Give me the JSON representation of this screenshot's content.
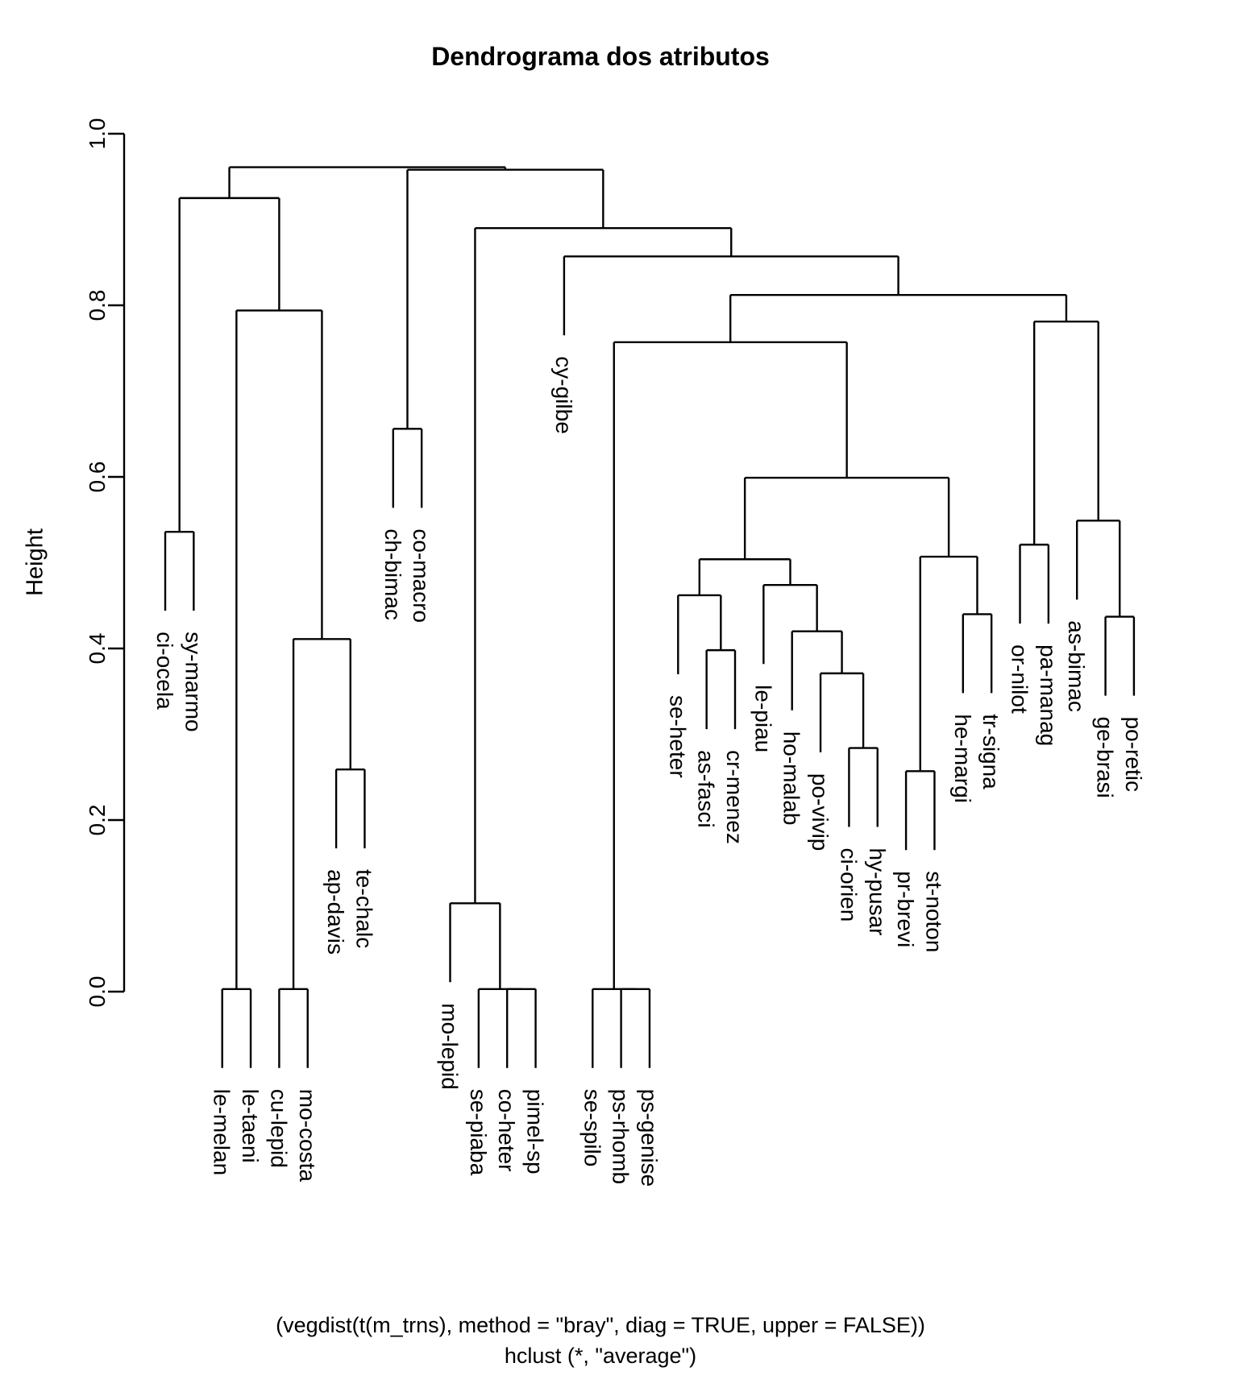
{
  "chart_data": {
    "type": "dendrogram",
    "title": "Dendrograma dos atributos",
    "ylabel": "Height",
    "ylim": [
      0.0,
      1.0
    ],
    "ytick_labels": [
      "0.0",
      "0.2",
      "0.4",
      "0.6",
      "0.8",
      "1.0"
    ],
    "ytick_values": [
      0.0,
      0.2,
      0.4,
      0.6,
      0.8,
      1.0
    ],
    "caption_line1": "(vegdist(t(m_trns), method = \"bray\", diag = TRUE, upper = FALSE))",
    "caption_line2": "hclust (*, \"average\")",
    "legend": "none",
    "grid": false,
    "leaf_hang_fraction": 0.092,
    "leaves": [
      "ci-ocela",
      "sy-marmo",
      "le-melan",
      "le-taeni",
      "cu-lepid",
      "mo-costa",
      "ap-davis",
      "te-chalc",
      "ch-bimac",
      "co-macro",
      "mo-lepid",
      "se-piaba",
      "co-heter",
      "pimel-sp",
      "cy-gilbe",
      "se-spilo",
      "ps-rhomb",
      "ps-genise",
      "se-heter",
      "as-fasci",
      "cr-menez",
      "le-piau",
      "ho-malab",
      "po-vivip",
      "ci-orien",
      "hy-pusar",
      "pr-brevi",
      "st-noton",
      "he-margi",
      "tr-signa",
      "or-nilot",
      "pa-manag",
      "as-bimac",
      "ge-brasi",
      "po-retic"
    ],
    "merges": [
      {
        "left": "L0",
        "right": "L1",
        "height": 0.536
      },
      {
        "left": "L2",
        "right": "L3",
        "height": 0.003
      },
      {
        "left": "L4",
        "right": "L5",
        "height": 0.003
      },
      {
        "left": "L6",
        "right": "L7",
        "height": 0.259
      },
      {
        "left": "M2",
        "right": "M3",
        "height": 0.411
      },
      {
        "left": "M1",
        "right": "M4",
        "height": 0.794
      },
      {
        "left": "M0",
        "right": "M5",
        "height": 0.925
      },
      {
        "left": "L8",
        "right": "L9",
        "height": 0.656
      },
      {
        "left": "L12",
        "right": "L13",
        "height": 0.003
      },
      {
        "left": "L11",
        "right": "M8",
        "height": 0.003
      },
      {
        "left": "L10",
        "right": "M9",
        "height": 0.103
      },
      {
        "left": "L16",
        "right": "L17",
        "height": 0.003
      },
      {
        "left": "L15",
        "right": "M11",
        "height": 0.003
      },
      {
        "left": "L19",
        "right": "L20",
        "height": 0.398
      },
      {
        "left": "L18",
        "right": "M13",
        "height": 0.462
      },
      {
        "left": "L24",
        "right": "L25",
        "height": 0.284
      },
      {
        "left": "L23",
        "right": "M15",
        "height": 0.371
      },
      {
        "left": "L22",
        "right": "M16",
        "height": 0.42
      },
      {
        "left": "L21",
        "right": "M17",
        "height": 0.474
      },
      {
        "left": "M14",
        "right": "M18",
        "height": 0.504
      },
      {
        "left": "L26",
        "right": "L27",
        "height": 0.257
      },
      {
        "left": "L28",
        "right": "L29",
        "height": 0.44
      },
      {
        "left": "M20",
        "right": "M21",
        "height": 0.507
      },
      {
        "left": "M19",
        "right": "M22",
        "height": 0.599
      },
      {
        "left": "M12",
        "right": "M23",
        "height": 0.757
      },
      {
        "left": "L30",
        "right": "L31",
        "height": 0.521
      },
      {
        "left": "L33",
        "right": "L34",
        "height": 0.437
      },
      {
        "left": "L32",
        "right": "M26",
        "height": 0.549
      },
      {
        "left": "M25",
        "right": "M27",
        "height": 0.781
      },
      {
        "left": "M24",
        "right": "M28",
        "height": 0.812
      },
      {
        "left": "L14",
        "right": "M29",
        "height": 0.857
      },
      {
        "left": "M10",
        "right": "M30",
        "height": 0.89
      },
      {
        "left": "M7",
        "right": "M31",
        "height": 0.958
      },
      {
        "left": "M6",
        "right": "M32",
        "height": 0.961
      }
    ]
  }
}
